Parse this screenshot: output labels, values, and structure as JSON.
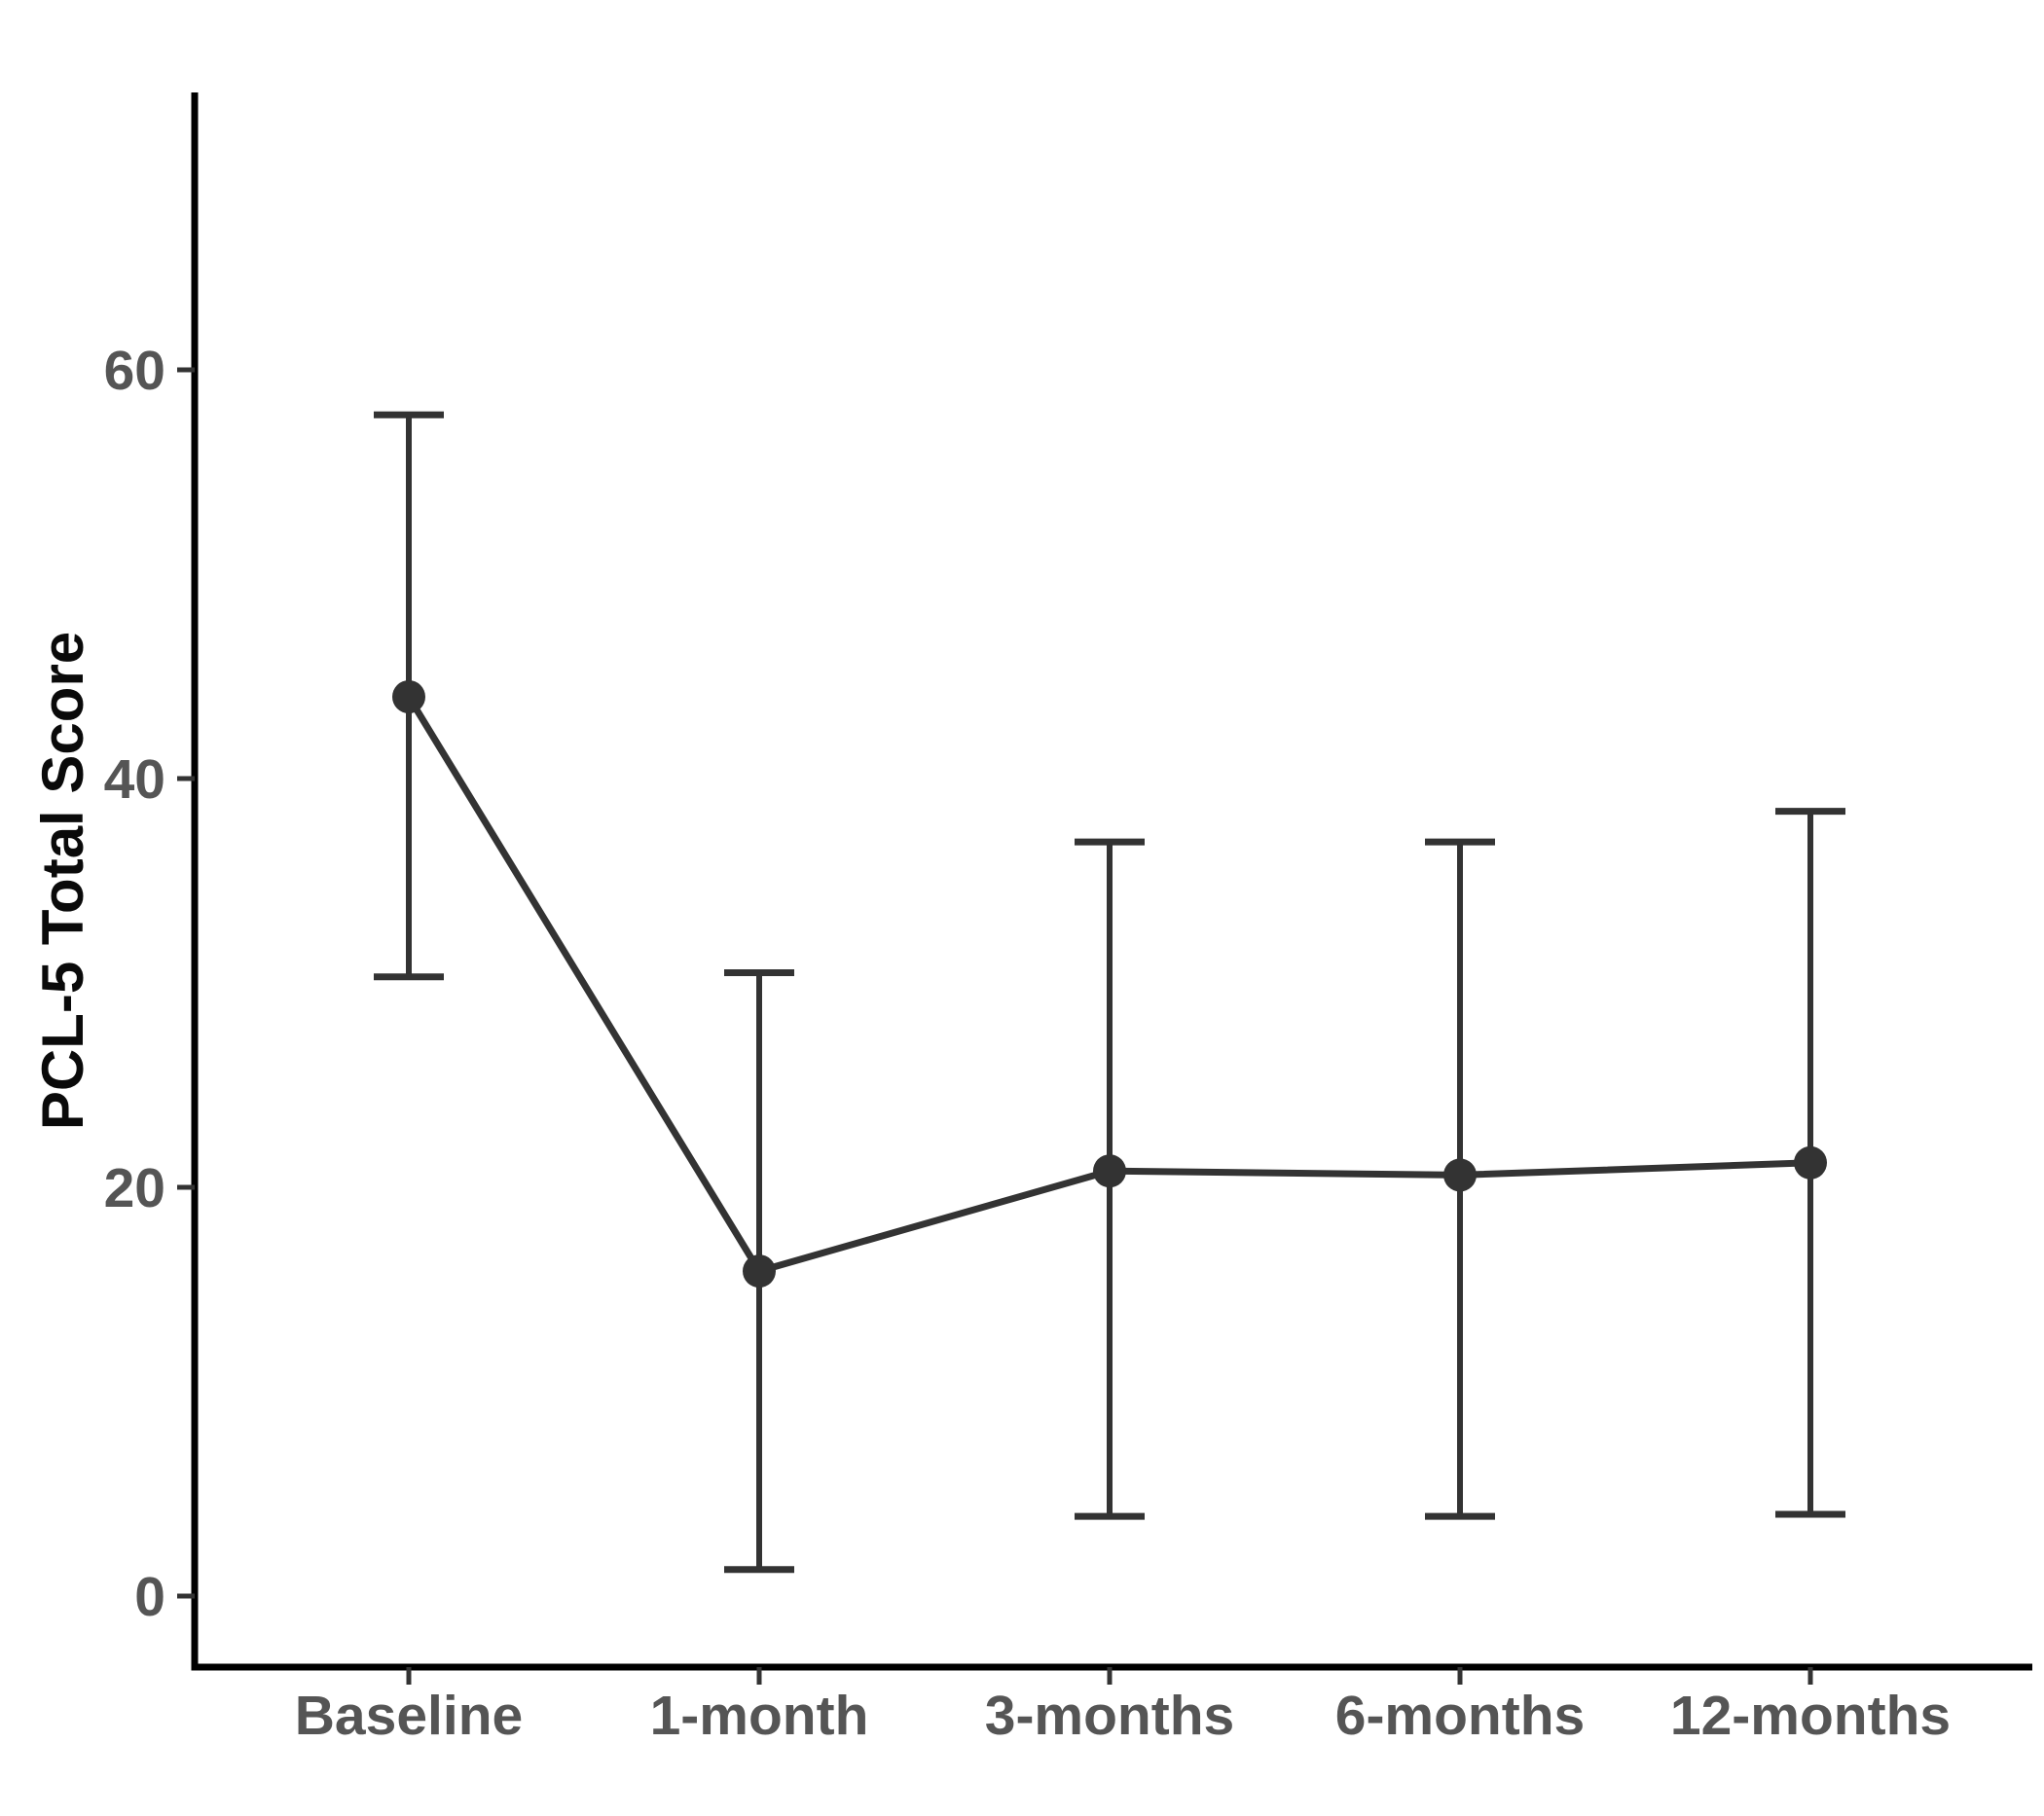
{
  "chart_data": {
    "type": "line",
    "title": "",
    "xlabel": "",
    "ylabel": "PCL-5 Total Score",
    "categories": [
      "Baseline",
      "1-month",
      "3-months",
      "6-months",
      "12-months"
    ],
    "y_ticks": [
      0,
      20,
      40,
      60
    ],
    "ylim": [
      -3.5,
      73.5
    ],
    "grid": false,
    "legend": false,
    "marker": "filled-circle",
    "error_bars": true,
    "series": [
      {
        "name": "PCL-5 Total Score mean",
        "means": [
          44.0,
          15.9,
          20.8,
          20.6,
          21.2
        ],
        "error_low": [
          30.3,
          1.3,
          3.9,
          3.9,
          4.0
        ],
        "error_high": [
          57.8,
          30.5,
          36.9,
          36.9,
          38.4
        ]
      }
    ],
    "colors": {
      "background": "#ffffff",
      "axis_line": "#000000",
      "tick_mark": "#333333",
      "tick_label": "#555555",
      "axis_title": "#0a0a0a",
      "series": "#333333"
    }
  }
}
